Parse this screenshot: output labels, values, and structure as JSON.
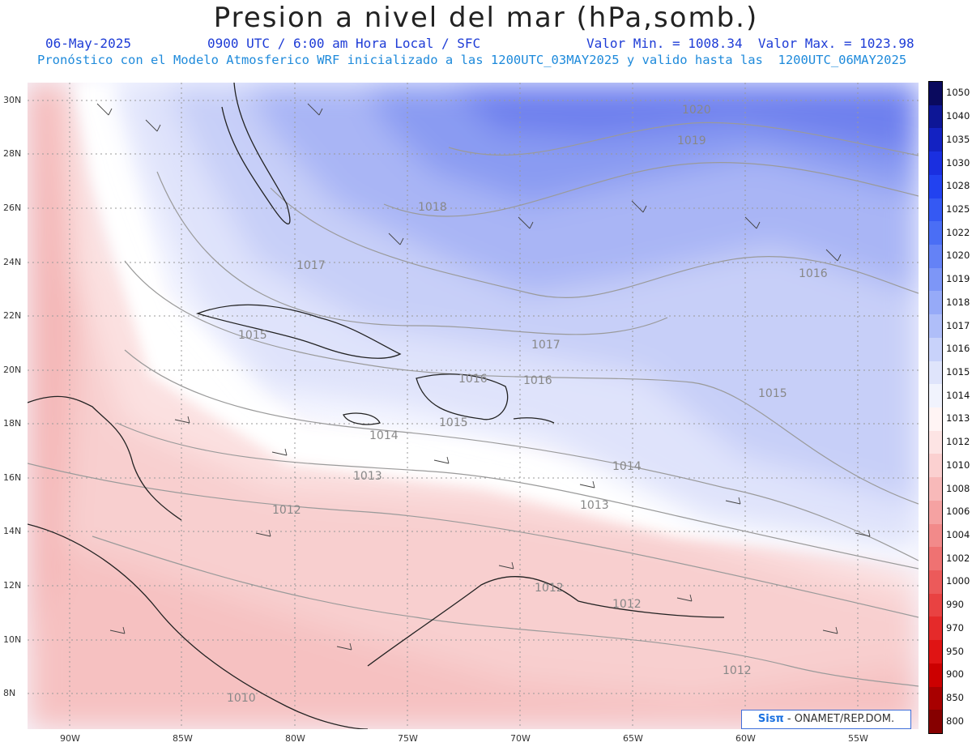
{
  "header": {
    "title": "Presion a nivel del mar (hPa,somb.)",
    "date": "06-May-2025",
    "time": "0900 UTC / 6:00 am Hora Local / SFC",
    "minmax": "Valor Min. = 1008.34  Valor Max. = 1023.98",
    "forecast": "Pronóstico con el Modelo Atmosferico WRF inicializado a las 1200UTC_03MAY2025 y valido hasta las  1200UTC_06MAY2025"
  },
  "axes": {
    "lat_labels": [
      "30N",
      "28N",
      "26N",
      "24N",
      "22N",
      "20N",
      "18N",
      "16N",
      "14N",
      "12N",
      "10N",
      "8N"
    ],
    "lon_labels": [
      "90W",
      "85W",
      "80W",
      "75W",
      "70W",
      "65W",
      "60W",
      "55W"
    ]
  },
  "contour_labels": [
    "1020",
    "1019",
    "1018",
    "1017",
    "1016",
    "1017",
    "1015",
    "1016",
    "1016",
    "1015",
    "1015",
    "1014",
    "1014",
    "1013",
    "1013",
    "1012",
    "1012",
    "1012",
    "1012",
    "1010"
  ],
  "colorbar": {
    "levels": [
      "1050",
      "1040",
      "1035",
      "1030",
      "1028",
      "1025",
      "1022",
      "1020",
      "1019",
      "1018",
      "1017",
      "1016",
      "1015",
      "1014",
      "1013",
      "1012",
      "1010",
      "1008",
      "1006",
      "1004",
      "1002",
      "1000",
      "990",
      "970",
      "950",
      "900",
      "850",
      "800"
    ],
    "colors": [
      "#0a0a5e",
      "#0d1696",
      "#1322c2",
      "#1a2fe0",
      "#2242f0",
      "#3559f3",
      "#4a6ef5",
      "#6482f6",
      "#7d96f7",
      "#96aaf8",
      "#afbef9",
      "#c8d2fa",
      "#dfe4fb",
      "#f1f3fd",
      "#fff4f4",
      "#fde4e4",
      "#fbd0d0",
      "#f8b9b9",
      "#f5a2a2",
      "#f28a8a",
      "#ef7272",
      "#ec5a5a",
      "#e94242",
      "#e52a2a",
      "#e01414",
      "#cc0000",
      "#a80000",
      "#860000"
    ]
  },
  "credit": {
    "brand": "Sisπ",
    "text": " - ONAMET/REP.DOM."
  }
}
